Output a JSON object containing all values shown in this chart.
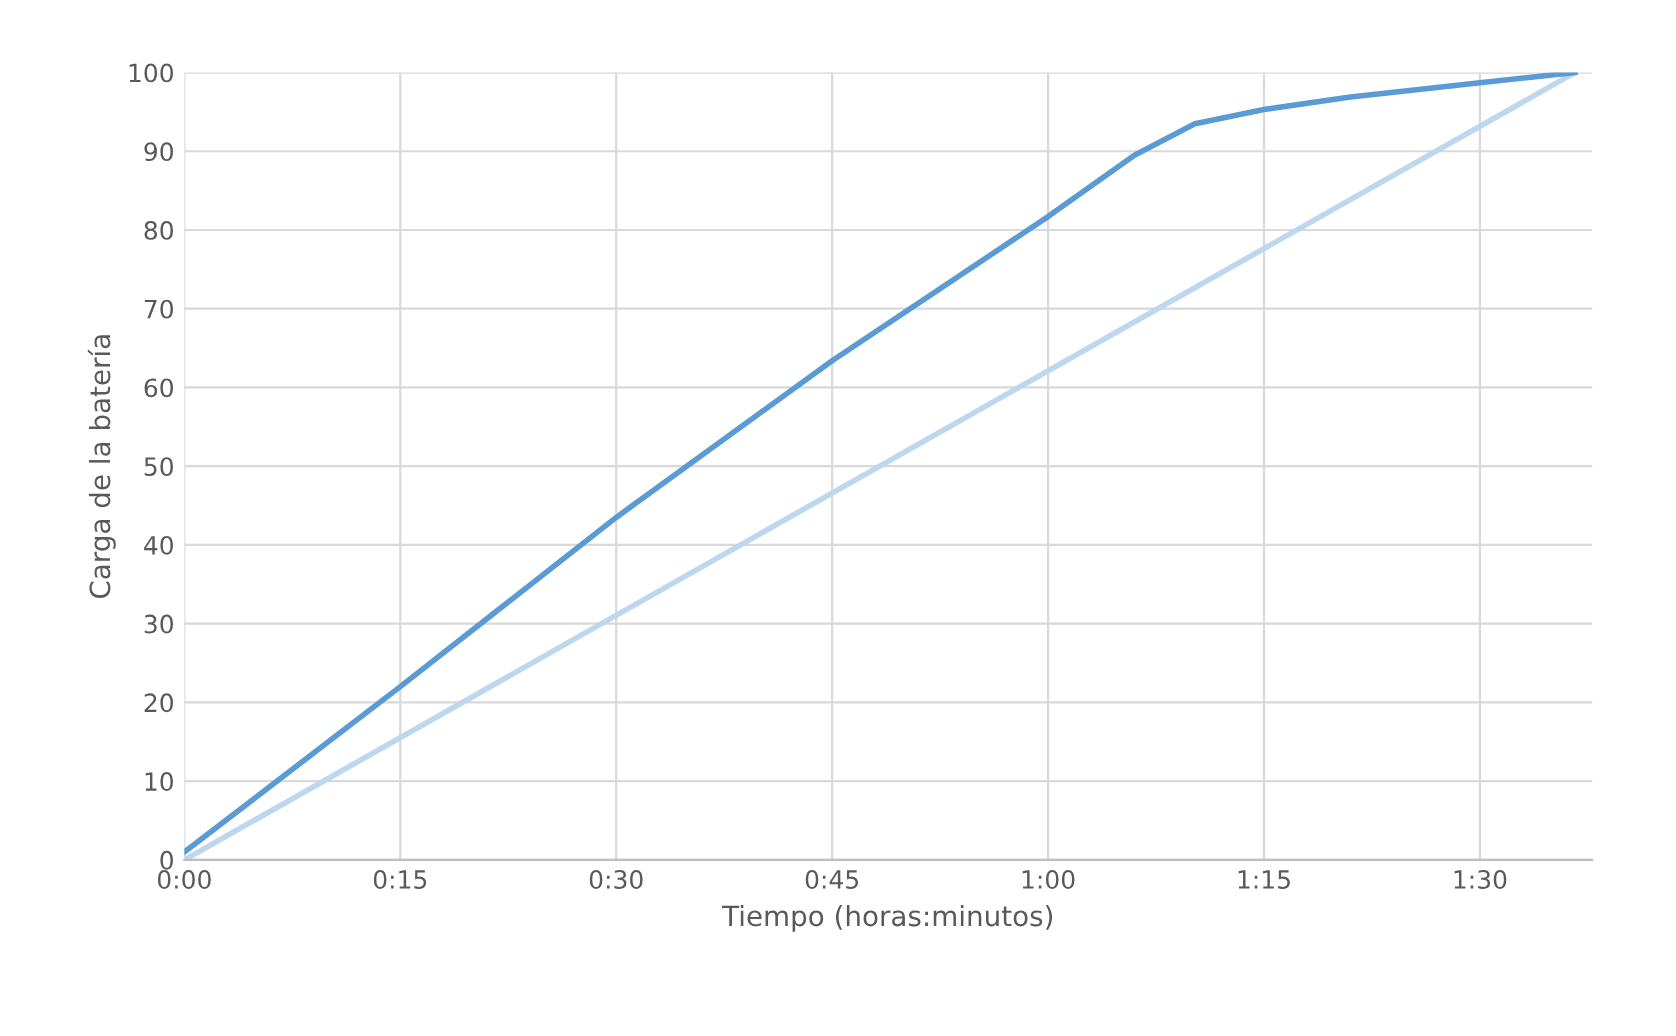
{
  "chart_data": {
    "type": "line",
    "xlabel": "Tiempo (horas:minutos)",
    "ylabel": "Carga de la batería",
    "series": [
      {
        "color": "#5b9bd5",
        "x": [
          0,
          0.25,
          0.5,
          0.75,
          1.0,
          1.1,
          1.17,
          1.25,
          1.35,
          1.5,
          1.61
        ],
        "values": [
          1,
          22,
          43.5,
          63.4,
          81.7,
          89.5,
          93.5,
          95.3,
          96.9,
          98.7,
          100
        ]
      },
      {
        "color": "#bdd7ee",
        "x": [
          0,
          1.61
        ],
        "values": [
          0,
          100
        ]
      }
    ],
    "xlim": [
      0,
      1.63
    ],
    "xticks": [
      {
        "value": 0,
        "label": "0:00"
      },
      {
        "value": 0.25,
        "label": "0:15"
      },
      {
        "value": 0.5,
        "label": "0:30"
      },
      {
        "value": 0.75,
        "label": "0:45"
      },
      {
        "value": 1.0,
        "label": "1:00"
      },
      {
        "value": 1.25,
        "label": "1:15"
      },
      {
        "value": 1.5,
        "label": "1:30"
      }
    ],
    "ylim": [
      0,
      100
    ],
    "yticks": [
      0,
      10,
      20,
      30,
      40,
      50,
      60,
      70,
      80,
      90,
      100
    ],
    "grid": true,
    "marker": "none",
    "line_style": "solid"
  }
}
